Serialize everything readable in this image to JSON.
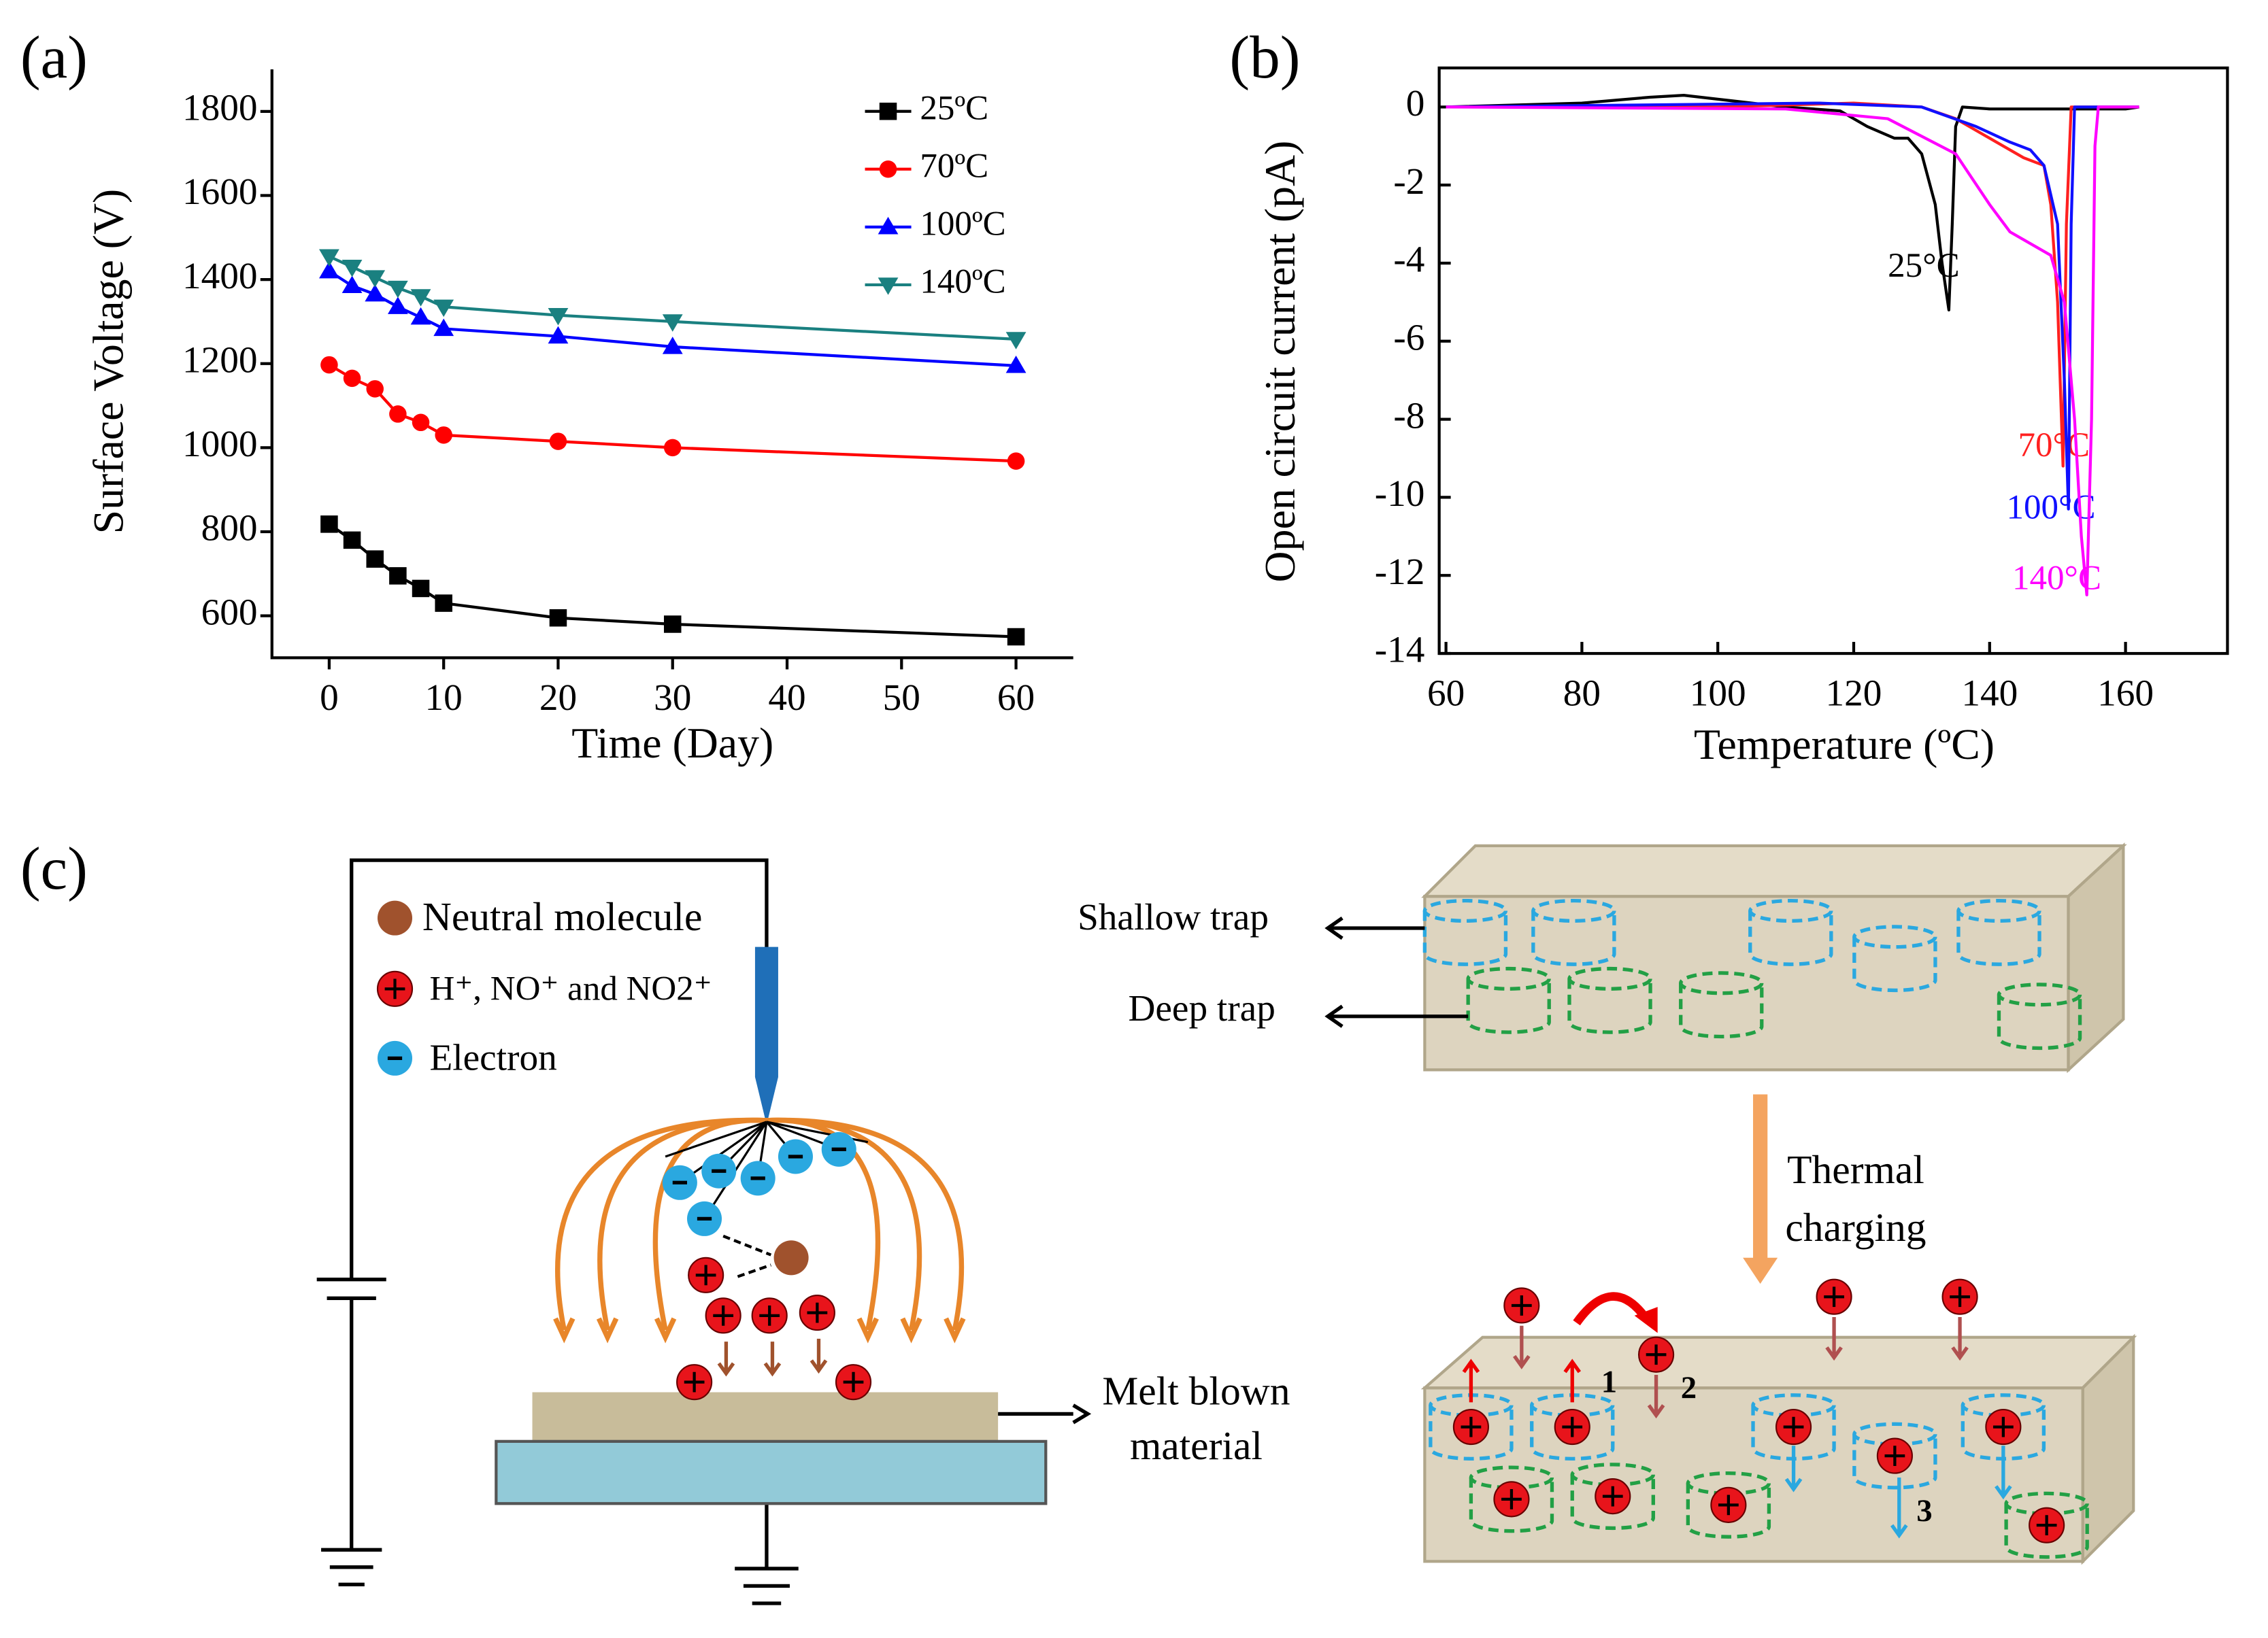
{
  "chart_data": [
    {
      "type": "line",
      "panel": "(a)",
      "xlabel": "Time (Day)",
      "ylabel": "Surface Voltage (V)",
      "x": [
        0,
        2,
        4,
        6,
        8,
        10,
        20,
        30,
        60
      ],
      "series": [
        {
          "name": "25ºC",
          "color": "#000000",
          "marker": "square",
          "values": [
            818,
            780,
            735,
            695,
            665,
            630,
            595,
            580,
            550
          ]
        },
        {
          "name": "70ºC",
          "color": "#ff0000",
          "marker": "circle",
          "values": [
            1197,
            1165,
            1140,
            1080,
            1060,
            1030,
            1015,
            1000,
            968
          ]
        },
        {
          "name": "100ºC",
          "color": "#0000ff",
          "marker": "triangle-up",
          "values": [
            1420,
            1385,
            1365,
            1335,
            1310,
            1283,
            1265,
            1240,
            1195
          ]
        },
        {
          "name": "140ºC",
          "color": "#1a8080",
          "marker": "triangle-down",
          "values": [
            1455,
            1430,
            1405,
            1380,
            1360,
            1335,
            1315,
            1300,
            1258
          ]
        }
      ],
      "xlim": [
        -5,
        65
      ],
      "ylim": [
        500,
        1900
      ],
      "xticks": [
        0,
        10,
        20,
        30,
        40,
        50,
        60
      ],
      "yticks": [
        600,
        800,
        1000,
        1200,
        1400,
        1600,
        1800
      ],
      "legend": "upper right"
    },
    {
      "type": "line",
      "panel": "(b)",
      "xlabel": "Temperature (ºC)",
      "ylabel": "Open circuit current (pA)",
      "series": [
        {
          "name": "25°C",
          "color": "#000000",
          "x": [
            60,
            80,
            90,
            95,
            100,
            110,
            118,
            122,
            126,
            128,
            130,
            132,
            133,
            134,
            134.5,
            135,
            136,
            140,
            150,
            160,
            162
          ],
          "values": [
            0,
            0.1,
            0.25,
            0.3,
            0.2,
            0,
            -0.1,
            -0.5,
            -0.8,
            -0.8,
            -1.2,
            -2.5,
            -4,
            -5.2,
            -3,
            -0.5,
            0,
            -0.05,
            -0.05,
            -0.05,
            0
          ]
        },
        {
          "name": "70°C",
          "color": "#ff2020",
          "x": [
            60,
            100,
            120,
            130,
            135,
            140,
            145,
            148,
            149,
            150,
            150.8,
            151.3,
            152,
            162
          ],
          "values": [
            0,
            0,
            0.1,
            0,
            -0.3,
            -0.8,
            -1.3,
            -1.5,
            -2.5,
            -5,
            -9.2,
            -3,
            0,
            0
          ]
        },
        {
          "name": "100°C",
          "color": "#1010ff",
          "x": [
            60,
            115,
            130,
            138,
            143,
            146,
            148,
            150,
            151,
            151.6,
            152,
            152.5,
            162
          ],
          "values": [
            0,
            0.1,
            0,
            -0.5,
            -0.9,
            -1.1,
            -1.5,
            -3,
            -7,
            -10.3,
            -3,
            0,
            0
          ]
        },
        {
          "name": "140°C",
          "color": "#ff00ff",
          "x": [
            60,
            110,
            125,
            135,
            140,
            143,
            147,
            149,
            151,
            152.5,
            153.5,
            154.3,
            155,
            155.5,
            156,
            162
          ],
          "values": [
            0,
            -0.05,
            -0.3,
            -1.2,
            -2.5,
            -3.2,
            -3.6,
            -3.8,
            -5,
            -8,
            -11,
            -12.5,
            -8,
            -1,
            0,
            0
          ]
        }
      ],
      "xlim": [
        59,
        175
      ],
      "ylim": [
        -14,
        1
      ],
      "xticks": [
        60,
        80,
        100,
        120,
        140,
        160
      ],
      "yticks": [
        -14,
        -12,
        -10,
        -8,
        -6,
        -4,
        -2,
        0
      ]
    }
  ],
  "diagram": {
    "panel": "(c)",
    "legend": [
      "Neutral molecule",
      "H⁺, NO⁺ and NO2⁺",
      "Electron"
    ],
    "material": [
      "Melt blown",
      "material"
    ],
    "traps": [
      "Shallow  trap",
      "Deep trap"
    ],
    "process": [
      "Thermal",
      "charging"
    ],
    "steps": [
      "1",
      "2",
      "3"
    ]
  }
}
